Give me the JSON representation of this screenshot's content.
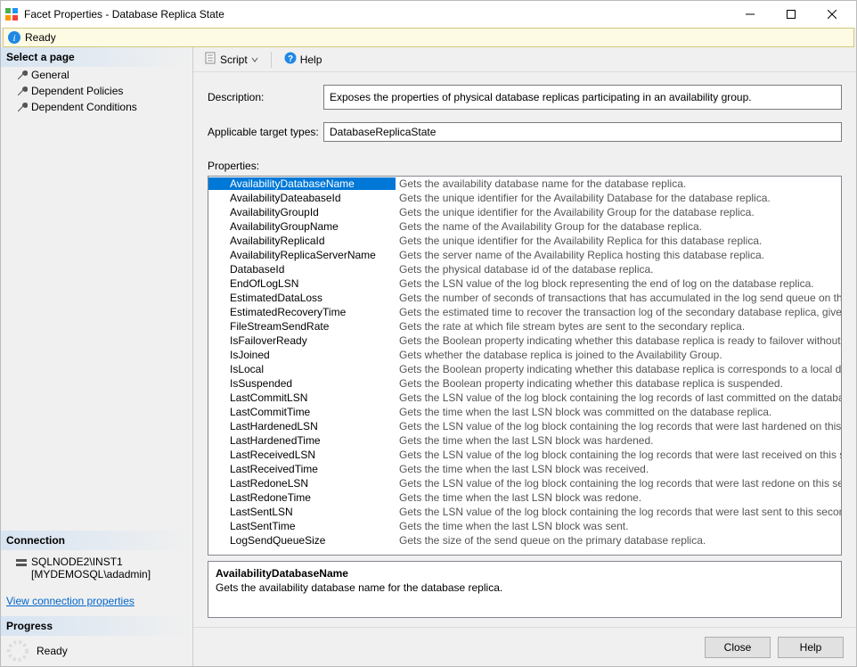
{
  "window": {
    "title": "Facet Properties - Database Replica State"
  },
  "ready_bar": {
    "text": "Ready"
  },
  "sidebar": {
    "select_page_header": "Select a page",
    "nav": [
      {
        "label": "General"
      },
      {
        "label": "Dependent Policies"
      },
      {
        "label": "Dependent Conditions"
      }
    ],
    "connection_header": "Connection",
    "server": "SQLNODE2\\INST1",
    "user": "[MYDEMOSQL\\adadmin]",
    "link": "View connection properties",
    "progress_header": "Progress",
    "progress_text": "Ready"
  },
  "toolbar": {
    "script": "Script",
    "help": "Help"
  },
  "form": {
    "description_label": "Description:",
    "description_value": "Exposes the properties of physical database replicas participating in an availability group.",
    "target_label": "Applicable target types:",
    "target_value": "DatabaseReplicaState",
    "properties_label": "Properties:"
  },
  "properties": [
    {
      "name": "AvailabilityDatabaseName",
      "desc": "Gets the availability database name for the database replica.",
      "selected": true
    },
    {
      "name": "AvailabilityDateabaseId",
      "desc": "Gets the unique identifier for the Availability Database for the database replica."
    },
    {
      "name": "AvailabilityGroupId",
      "desc": "Gets the unique identifier for the Availability Group for the database replica."
    },
    {
      "name": "AvailabilityGroupName",
      "desc": "Gets the name of the Availability Group for the database replica."
    },
    {
      "name": "AvailabilityReplicaId",
      "desc": "Gets the unique identifier for the Availability Replica for this database replica."
    },
    {
      "name": "AvailabilityReplicaServerName",
      "desc": "Gets the server name of the Availability Replica hosting this database replica."
    },
    {
      "name": "DatabaseId",
      "desc": "Gets the physical database id of the database replica."
    },
    {
      "name": "EndOfLogLSN",
      "desc": "Gets the LSN value of the log block representing the end of log on the database replica."
    },
    {
      "name": "EstimatedDataLoss",
      "desc": "Gets the number of seconds of transactions that has accumulated in the log send queue on the primary"
    },
    {
      "name": "EstimatedRecoveryTime",
      "desc": "Gets the estimated time to recover the transaction log of the secondary database replica, given the cur"
    },
    {
      "name": "FileStreamSendRate",
      "desc": "Gets the rate at which file stream bytes are sent to the secondary replica."
    },
    {
      "name": "IsFailoverReady",
      "desc": "Gets the Boolean property indicating whether this database replica is ready to failover without data loss"
    },
    {
      "name": "IsJoined",
      "desc": "Gets whether the database replica is joined to the Availability Group."
    },
    {
      "name": "IsLocal",
      "desc": "Gets the Boolean property indicating whether this database replica is corresponds to a local database."
    },
    {
      "name": "IsSuspended",
      "desc": "Gets the Boolean property indicating whether this database replica is suspended."
    },
    {
      "name": "LastCommitLSN",
      "desc": "Gets the LSN value of the log block containing the log records of last committed on the database replic"
    },
    {
      "name": "LastCommitTime",
      "desc": "Gets the time when the last LSN block was committed on the database replica."
    },
    {
      "name": "LastHardenedLSN",
      "desc": "Gets the LSN value of the log block containing the log records that were last hardened on this seconda"
    },
    {
      "name": "LastHardenedTime",
      "desc": "Gets the time when the last LSN block was hardened."
    },
    {
      "name": "LastReceivedLSN",
      "desc": "Gets the LSN value of the log block containing the log records that were last received on this secondar"
    },
    {
      "name": "LastReceivedTime",
      "desc": "Gets the time when the last LSN block was received."
    },
    {
      "name": "LastRedoneLSN",
      "desc": "Gets the LSN value of the log block containing the log records that were last redone on this secondary"
    },
    {
      "name": "LastRedoneTime",
      "desc": "Gets the time when the last LSN block was redone."
    },
    {
      "name": "LastSentLSN",
      "desc": "Gets the LSN value of the log block containing the log records that were last sent to this secondary rep"
    },
    {
      "name": "LastSentTime",
      "desc": "Gets the time when the last LSN block was sent."
    },
    {
      "name": "LogSendQueueSize",
      "desc": "Gets the size of the send queue on the primary database replica."
    }
  ],
  "detail": {
    "title": "AvailabilityDatabaseName",
    "desc": "Gets the availability database name for the database replica."
  },
  "footer": {
    "close": "Close",
    "help": "Help"
  },
  "colors": {
    "selection": "#0078d7",
    "readybar_bg": "#fdfbe3",
    "readybar_border": "#d3c87a",
    "link": "#0066cc"
  }
}
